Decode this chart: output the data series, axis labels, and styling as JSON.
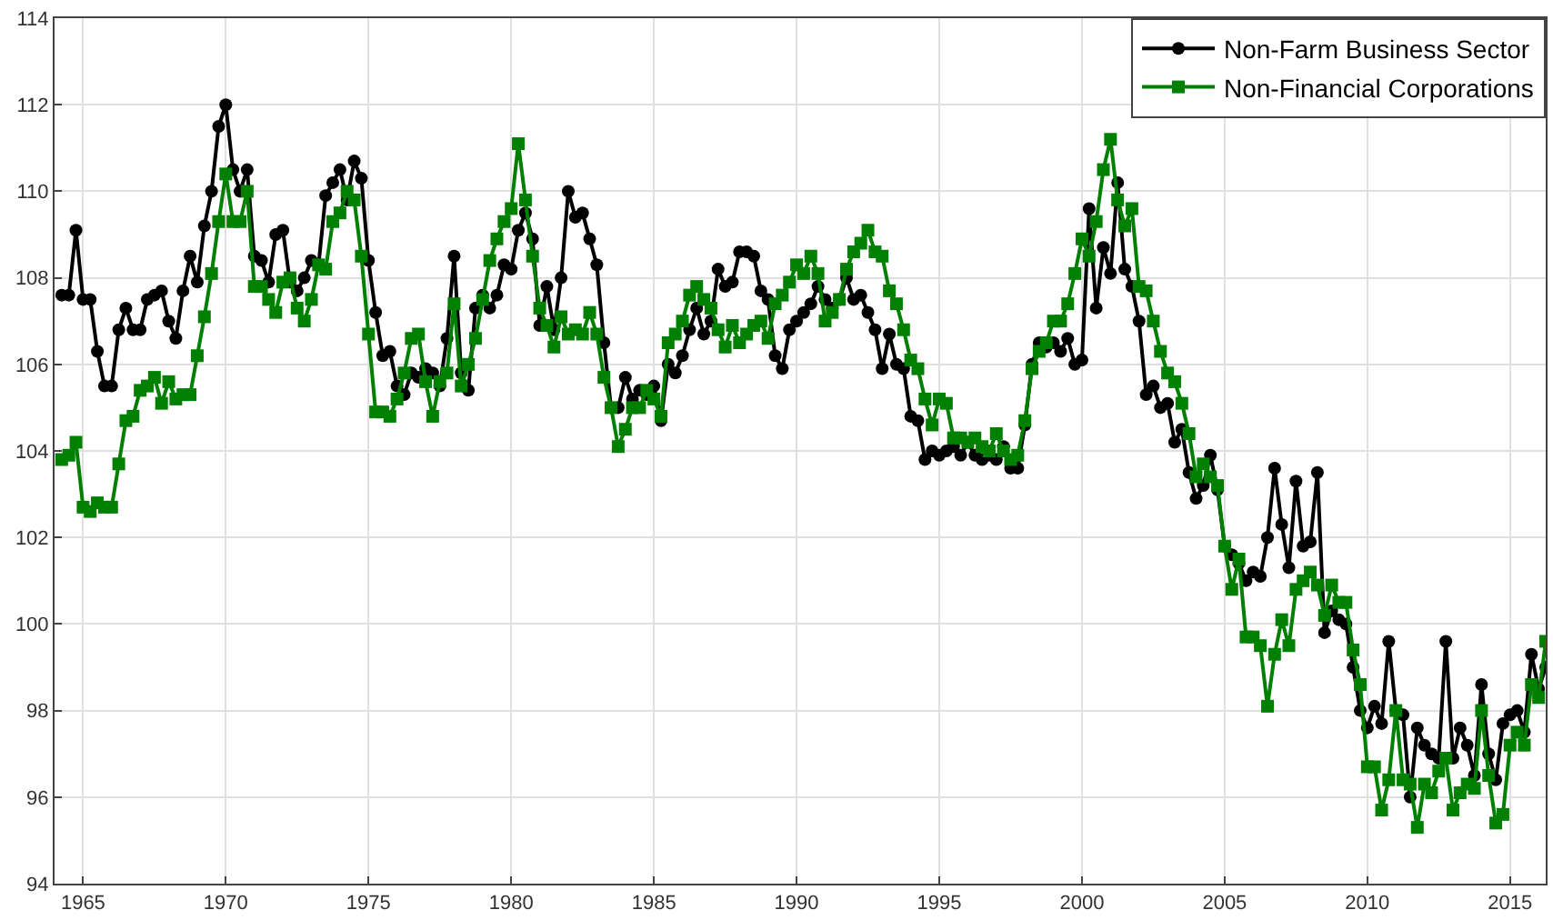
{
  "chart_data": {
    "type": "line",
    "x": [
      1964.25,
      1964.5,
      1964.75,
      1965,
      1965.25,
      1965.5,
      1965.75,
      1966,
      1966.25,
      1966.5,
      1966.75,
      1967,
      1967.25,
      1967.5,
      1967.75,
      1968,
      1968.25,
      1968.5,
      1968.75,
      1969,
      1969.25,
      1969.5,
      1969.75,
      1970,
      1970.25,
      1970.5,
      1970.75,
      1971,
      1971.25,
      1971.5,
      1971.75,
      1972,
      1972.25,
      1972.5,
      1972.75,
      1973,
      1973.25,
      1973.5,
      1973.75,
      1974,
      1974.25,
      1974.5,
      1974.75,
      1975,
      1975.25,
      1975.5,
      1975.75,
      1976,
      1976.25,
      1976.5,
      1976.75,
      1977,
      1977.25,
      1977.5,
      1977.75,
      1978,
      1978.25,
      1978.5,
      1978.75,
      1979,
      1979.25,
      1979.5,
      1979.75,
      1980,
      1980.25,
      1980.5,
      1980.75,
      1981,
      1981.25,
      1981.5,
      1981.75,
      1982,
      1982.25,
      1982.5,
      1982.75,
      1983,
      1983.25,
      1983.5,
      1983.75,
      1984,
      1984.25,
      1984.5,
      1984.75,
      1985,
      1985.25,
      1985.5,
      1985.75,
      1986,
      1986.25,
      1986.5,
      1986.75,
      1987,
      1987.25,
      1987.5,
      1987.75,
      1988,
      1988.25,
      1988.5,
      1988.75,
      1989,
      1989.25,
      1989.5,
      1989.75,
      1990,
      1990.25,
      1990.5,
      1990.75,
      1991,
      1991.25,
      1991.5,
      1991.75,
      1992,
      1992.25,
      1992.5,
      1992.75,
      1993,
      1993.25,
      1993.5,
      1993.75,
      1994,
      1994.25,
      1994.5,
      1994.75,
      1995,
      1995.25,
      1995.5,
      1995.75,
      1996,
      1996.25,
      1996.5,
      1996.75,
      1997,
      1997.25,
      1997.5,
      1997.75,
      1998,
      1998.25,
      1998.5,
      1998.75,
      1999,
      1999.25,
      1999.5,
      1999.75,
      2000,
      2000.25,
      2000.5,
      2000.75,
      2001,
      2001.25,
      2001.5,
      2001.75,
      2002,
      2002.25,
      2002.5,
      2002.75,
      2003,
      2003.25,
      2003.5,
      2003.75,
      2004,
      2004.25,
      2004.5,
      2004.75,
      2005,
      2005.25,
      2005.5,
      2005.75,
      2006,
      2006.25,
      2006.5,
      2006.75,
      2007,
      2007.25,
      2007.5,
      2007.75,
      2008,
      2008.25,
      2008.5,
      2008.75,
      2009,
      2009.25,
      2009.5,
      2009.75,
      2010,
      2010.25,
      2010.5,
      2010.75,
      2011,
      2011.25,
      2011.5,
      2011.75,
      2012,
      2012.25,
      2012.5,
      2012.75,
      2013,
      2013.25,
      2013.5,
      2013.75,
      2014,
      2014.25,
      2014.5,
      2014.75,
      2015,
      2015.25,
      2015.5,
      2015.75,
      2016,
      2016.25
    ],
    "series": [
      {
        "name": "Non-Farm Business Sector",
        "color": "#000000",
        "marker": "circle",
        "values": [
          107.6,
          107.6,
          109.1,
          107.5,
          107.5,
          106.3,
          105.5,
          105.5,
          106.8,
          107.3,
          106.8,
          106.8,
          107.5,
          107.6,
          107.7,
          107.0,
          106.6,
          107.7,
          108.5,
          107.9,
          109.2,
          110.0,
          111.5,
          112.0,
          110.5,
          110.0,
          110.5,
          108.5,
          108.4,
          107.9,
          109.0,
          109.1,
          107.9,
          107.7,
          108.0,
          108.4,
          108.3,
          109.9,
          110.2,
          110.5,
          109.8,
          110.7,
          110.3,
          108.4,
          107.2,
          106.2,
          106.3,
          105.5,
          105.3,
          105.8,
          105.7,
          105.9,
          105.8,
          105.5,
          106.6,
          108.5,
          105.8,
          105.4,
          107.3,
          107.6,
          107.3,
          107.6,
          108.3,
          108.2,
          109.1,
          109.5,
          108.9,
          106.9,
          107.8,
          106.8,
          108.0,
          110.0,
          109.4,
          109.5,
          108.9,
          108.3,
          106.5,
          105.0,
          105.0,
          105.7,
          105.2,
          105.4,
          105.3,
          105.5,
          104.7,
          106.0,
          105.8,
          106.2,
          106.8,
          107.3,
          106.7,
          107.0,
          108.2,
          107.8,
          107.9,
          108.6,
          108.6,
          108.5,
          107.7,
          107.5,
          106.2,
          105.9,
          106.8,
          107.0,
          107.2,
          107.4,
          107.8,
          107.5,
          107.3,
          107.5,
          108.0,
          107.5,
          107.6,
          107.2,
          106.8,
          105.9,
          106.7,
          106.0,
          105.9,
          104.8,
          104.7,
          103.8,
          104.0,
          103.9,
          104.0,
          104.1,
          103.9,
          104.2,
          103.9,
          103.8,
          103.9,
          103.8,
          104.1,
          103.6,
          103.6,
          104.6,
          106.0,
          106.5,
          106.4,
          106.5,
          106.3,
          106.6,
          106.0,
          106.1,
          109.6,
          107.3,
          108.7,
          108.1,
          110.2,
          108.2,
          107.8,
          107.0,
          105.3,
          105.5,
          105.0,
          105.1,
          104.2,
          104.5,
          103.5,
          102.9,
          103.2,
          103.9,
          103.1,
          101.8,
          101.6,
          101.4,
          101.0,
          101.2,
          101.1,
          102.0,
          103.6,
          102.3,
          101.3,
          103.3,
          101.8,
          101.9,
          103.5,
          99.8,
          100.3,
          100.1,
          100.0,
          99.0,
          98.0,
          97.6,
          98.1,
          97.7,
          99.6,
          98.0,
          97.9,
          96.0,
          97.6,
          97.2,
          97.0,
          96.9,
          99.6,
          96.9,
          97.6,
          97.2,
          96.5,
          98.6,
          97.0,
          96.4,
          97.7,
          97.9,
          98.0,
          97.5,
          99.3,
          98.5,
          99.0
        ]
      },
      {
        "name": "Non-Financial Corporations",
        "color": "#008000",
        "marker": "square",
        "values": [
          103.8,
          103.9,
          104.2,
          102.7,
          102.6,
          102.8,
          102.7,
          102.7,
          103.7,
          104.7,
          104.8,
          105.4,
          105.5,
          105.7,
          105.1,
          105.6,
          105.2,
          105.3,
          105.3,
          106.2,
          107.1,
          108.1,
          109.3,
          110.4,
          109.3,
          109.3,
          110.0,
          107.8,
          107.8,
          107.5,
          107.2,
          107.9,
          108.0,
          107.3,
          107.0,
          107.5,
          108.3,
          108.2,
          109.3,
          109.5,
          110.0,
          109.8,
          108.5,
          106.7,
          104.9,
          104.9,
          104.8,
          105.2,
          105.8,
          106.6,
          106.7,
          105.6,
          104.8,
          105.6,
          105.8,
          107.4,
          105.5,
          106.0,
          106.6,
          107.5,
          108.4,
          108.9,
          109.3,
          109.6,
          111.1,
          109.8,
          108.5,
          107.3,
          106.9,
          106.4,
          107.1,
          106.7,
          106.8,
          106.7,
          107.2,
          106.7,
          105.7,
          105.0,
          104.1,
          104.5,
          105.0,
          105.0,
          105.4,
          105.2,
          104.8,
          106.5,
          106.7,
          107.0,
          107.6,
          107.8,
          107.5,
          107.3,
          106.8,
          106.4,
          106.9,
          106.5,
          106.7,
          106.9,
          107.0,
          106.6,
          107.4,
          107.6,
          107.9,
          108.3,
          108.1,
          108.5,
          108.1,
          107.0,
          107.2,
          107.5,
          108.2,
          108.6,
          108.8,
          109.1,
          108.6,
          108.5,
          107.7,
          107.4,
          106.8,
          106.1,
          105.9,
          105.2,
          104.6,
          105.2,
          105.1,
          104.3,
          104.3,
          104.2,
          104.3,
          104.1,
          104.0,
          104.4,
          104.0,
          103.8,
          103.9,
          104.7,
          105.9,
          106.3,
          106.5,
          107.0,
          107.0,
          107.4,
          108.1,
          108.9,
          108.5,
          109.3,
          110.5,
          111.2,
          109.8,
          109.2,
          109.6,
          107.8,
          107.7,
          107.0,
          106.3,
          105.8,
          105.6,
          105.1,
          104.4,
          103.4,
          103.7,
          103.4,
          103.2,
          101.8,
          100.8,
          101.5,
          99.7,
          99.7,
          99.5,
          98.1,
          99.3,
          100.1,
          99.5,
          100.8,
          101.0,
          101.2,
          100.9,
          100.2,
          100.9,
          100.5,
          100.5,
          99.4,
          98.6,
          96.7,
          96.7,
          95.7,
          96.4,
          98.0,
          96.4,
          96.3,
          95.3,
          96.3,
          96.1,
          96.6,
          96.9,
          95.7,
          96.1,
          96.3,
          96.2,
          98.0,
          96.5,
          95.4,
          95.6,
          97.2,
          97.5,
          97.2,
          98.6,
          98.3,
          99.6
        ]
      }
    ],
    "xlim": [
      1964,
      2016.25
    ],
    "xticks": [
      1965,
      1970,
      1975,
      1980,
      1985,
      1990,
      1995,
      2000,
      2005,
      2010,
      2015
    ],
    "ylim": [
      94,
      114
    ],
    "yticks": [
      94,
      96,
      98,
      100,
      102,
      104,
      106,
      108,
      110,
      112,
      114
    ],
    "grid": true,
    "legend": "top right",
    "line_style": "solid"
  }
}
